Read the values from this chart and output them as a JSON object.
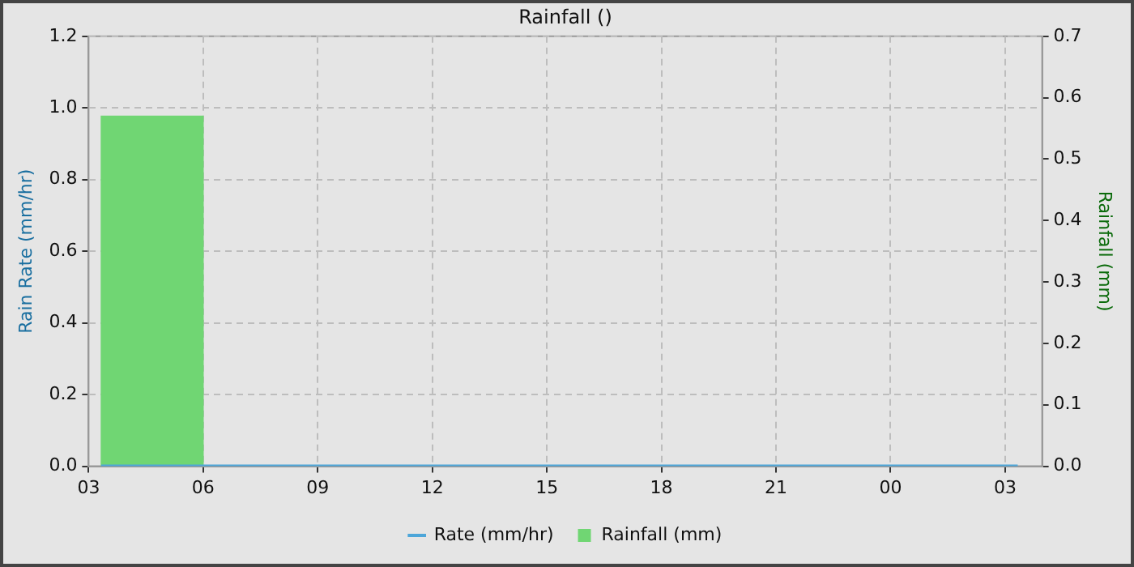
{
  "chart_data": {
    "type": "line",
    "title": "Rainfall ()",
    "ylabel": "Rain Rate (mm/hr)",
    "y2label": "Rainfall (mm)",
    "xlim": [
      3,
      27.97
    ],
    "xticks": [
      {
        "value": 3,
        "label": "03"
      },
      {
        "value": 6,
        "label": "06"
      },
      {
        "value": 9,
        "label": "09"
      },
      {
        "value": 12,
        "label": "12"
      },
      {
        "value": 15,
        "label": "15"
      },
      {
        "value": 18,
        "label": "18"
      },
      {
        "value": 21,
        "label": "21"
      },
      {
        "value": 24,
        "label": "00"
      },
      {
        "value": 27,
        "label": "03"
      }
    ],
    "ylim": [
      0,
      1.2
    ],
    "yticks": [
      {
        "value": 0,
        "label": "0.0"
      },
      0.2,
      0.4,
      0.6,
      0.8,
      {
        "value": 1.0,
        "label": "1.0"
      },
      1.2
    ],
    "y2lim": [
      0,
      0.7
    ],
    "y2ticks": [
      {
        "value": 0,
        "label": "0.0"
      },
      0.1,
      0.2,
      0.3,
      0.4,
      0.5,
      0.6,
      0.7
    ],
    "grid": true,
    "legend": "bottom",
    "marker": "none",
    "line_style": "solid",
    "series": [
      {
        "name": "Rate (mm/hr)",
        "color": "#4da6d9",
        "x": [
          3.33,
          27.33
        ],
        "values": [
          0,
          0
        ]
      },
      {
        "name": "Rainfall (mm)",
        "type": "histogram",
        "axis": "y2",
        "color": "#70d673",
        "bins": [
          3.33,
          6
        ],
        "values": [
          0.57
        ]
      }
    ]
  }
}
